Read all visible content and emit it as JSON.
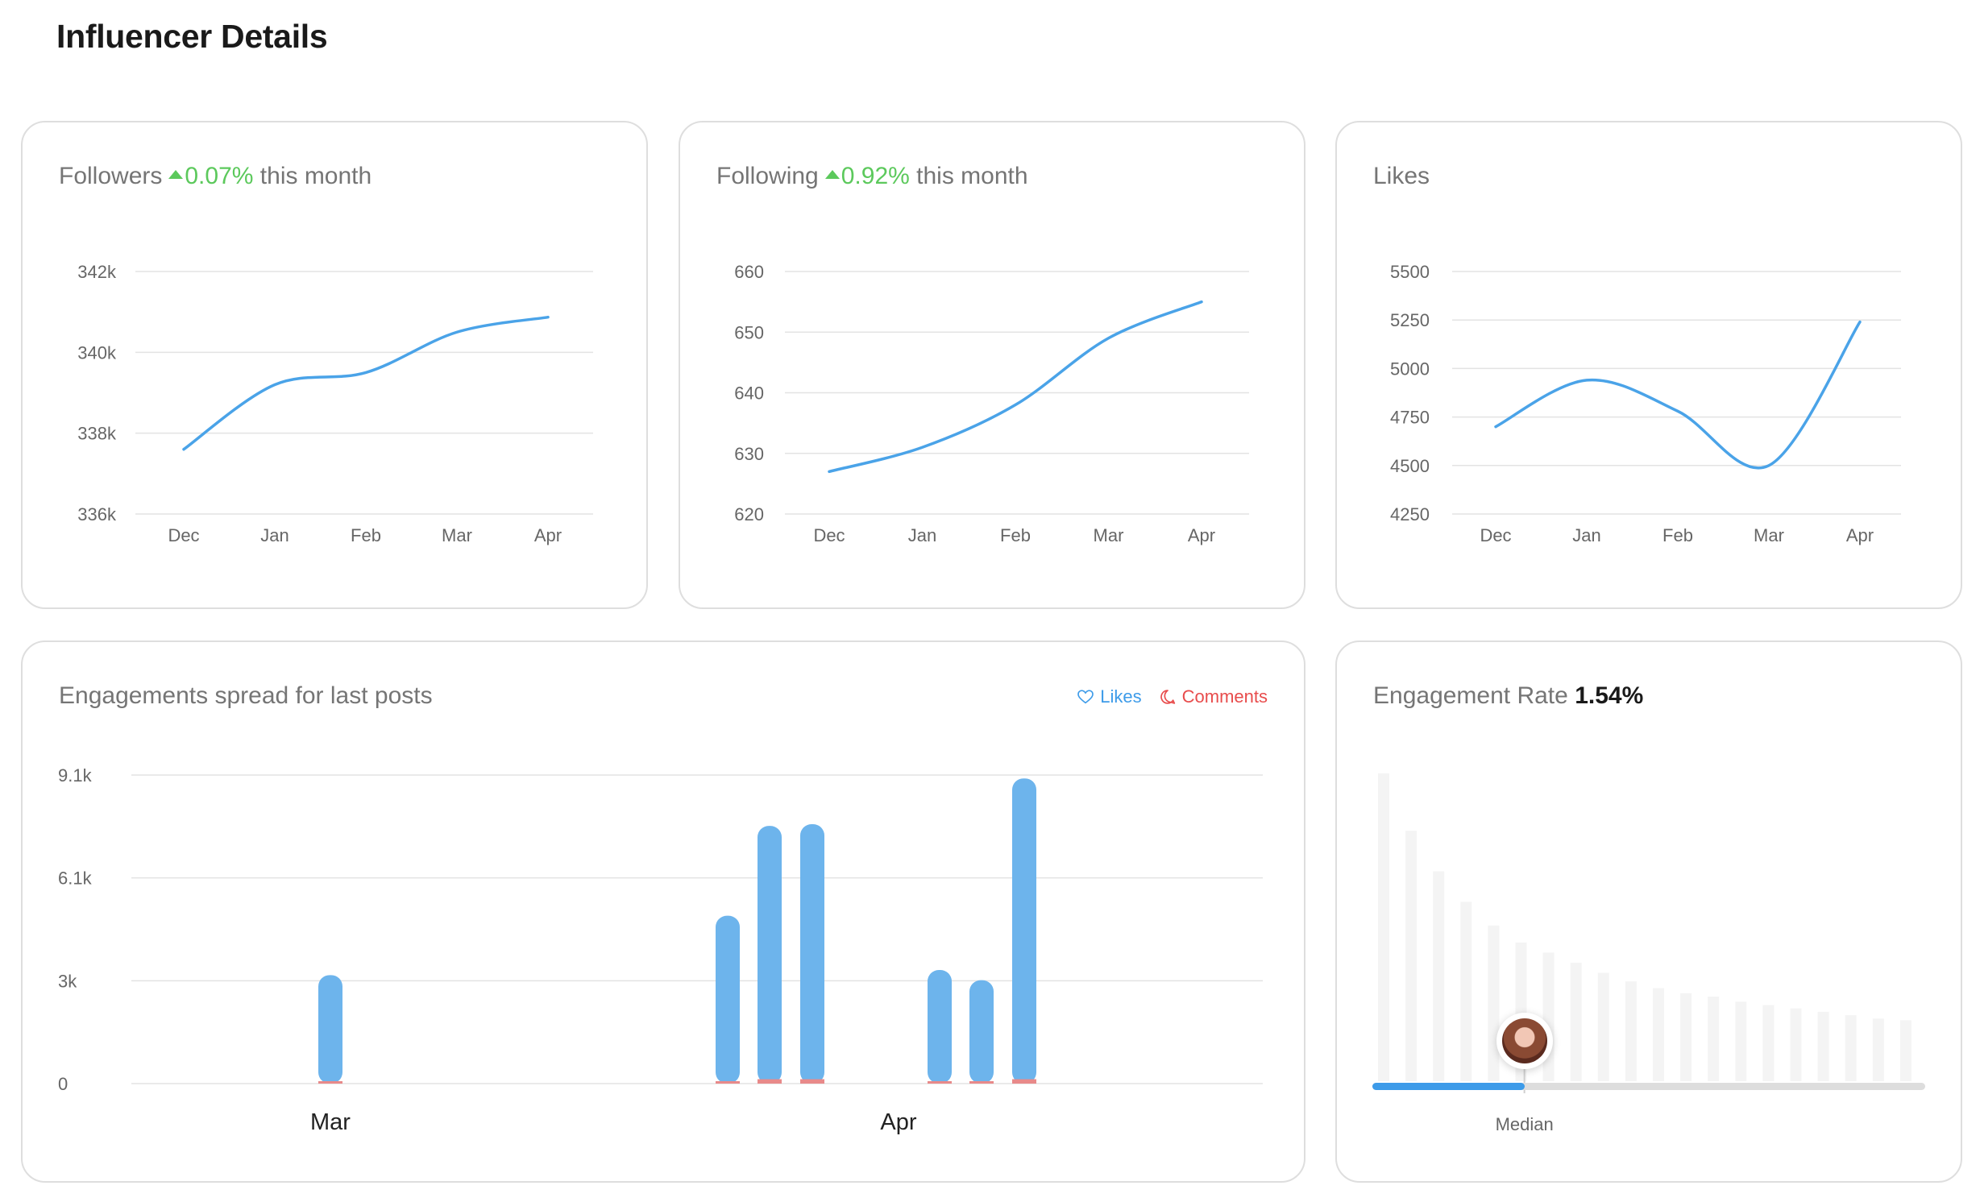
{
  "page": {
    "title": "Influencer Details"
  },
  "colors": {
    "line": "#4aa3e8",
    "bar_likes": "#6db4ec",
    "bar_comments": "#e88a8a",
    "grid": "#e3e3e3",
    "positive": "#5cc95c",
    "median_fill": "#3d9be9"
  },
  "cards": {
    "followers": {
      "label": "Followers",
      "change": "0.07%",
      "suffix": "this month",
      "trend": "up"
    },
    "following": {
      "label": "Following",
      "change": "0.92%",
      "suffix": "this month",
      "trend": "up"
    },
    "likes": {
      "label": "Likes"
    },
    "engagements": {
      "label": "Engagements spread for last posts"
    },
    "rate": {
      "label": "Engagement Rate",
      "value": "1.54%",
      "median_label": "Median"
    }
  },
  "legend": {
    "likes": "Likes",
    "comments": "Comments",
    "likes_icon": "heart-icon",
    "comments_icon": "comment-icon"
  },
  "chart_data": [
    {
      "type": "line",
      "x": [
        "Dec",
        "Jan",
        "Feb",
        "Mar",
        "Apr"
      ],
      "y": [
        337600,
        339200,
        339500,
        340500,
        340870
      ],
      "yticks": [
        "342k",
        "340k",
        "338k",
        "336k"
      ],
      "ylim": [
        336000,
        342000
      ]
    },
    {
      "type": "line",
      "x": [
        "Dec",
        "Jan",
        "Feb",
        "Mar",
        "Apr"
      ],
      "y": [
        627,
        631,
        638,
        649,
        655
      ],
      "yticks": [
        "660",
        "650",
        "640",
        "630",
        "620"
      ],
      "ylim": [
        620,
        660
      ]
    },
    {
      "type": "line",
      "x": [
        "Dec",
        "Jan",
        "Feb",
        "Mar",
        "Apr"
      ],
      "y": [
        4700,
        4940,
        4780,
        4500,
        5240
      ],
      "yticks": [
        "5500",
        "5250",
        "5000",
        "4750",
        "4500",
        "4250"
      ],
      "ylim": [
        4250,
        5500
      ]
    },
    {
      "type": "bar",
      "x_labels": [
        "Mar",
        "Apr"
      ],
      "yticks": [
        "9.1k",
        "6.1k",
        "3k",
        "0"
      ],
      "ylim": [
        0,
        9100
      ],
      "series": [
        {
          "name": "Likes",
          "values": [
            3200,
            4950,
            7600,
            7650,
            3350,
            3050,
            9000
          ]
        },
        {
          "name": "Comments",
          "values": [
            20,
            20,
            130,
            130,
            20,
            20,
            130
          ]
        }
      ]
    },
    {
      "type": "bar",
      "values": [
        9.1,
        7.4,
        6.2,
        5.3,
        4.6,
        4.1,
        3.8,
        3.5,
        3.2,
        2.95,
        2.75,
        2.6,
        2.5,
        2.35,
        2.25,
        2.15,
        2.05,
        1.95,
        1.85,
        1.8
      ],
      "highlight_index": 5,
      "median_fraction": 0.275
    }
  ]
}
